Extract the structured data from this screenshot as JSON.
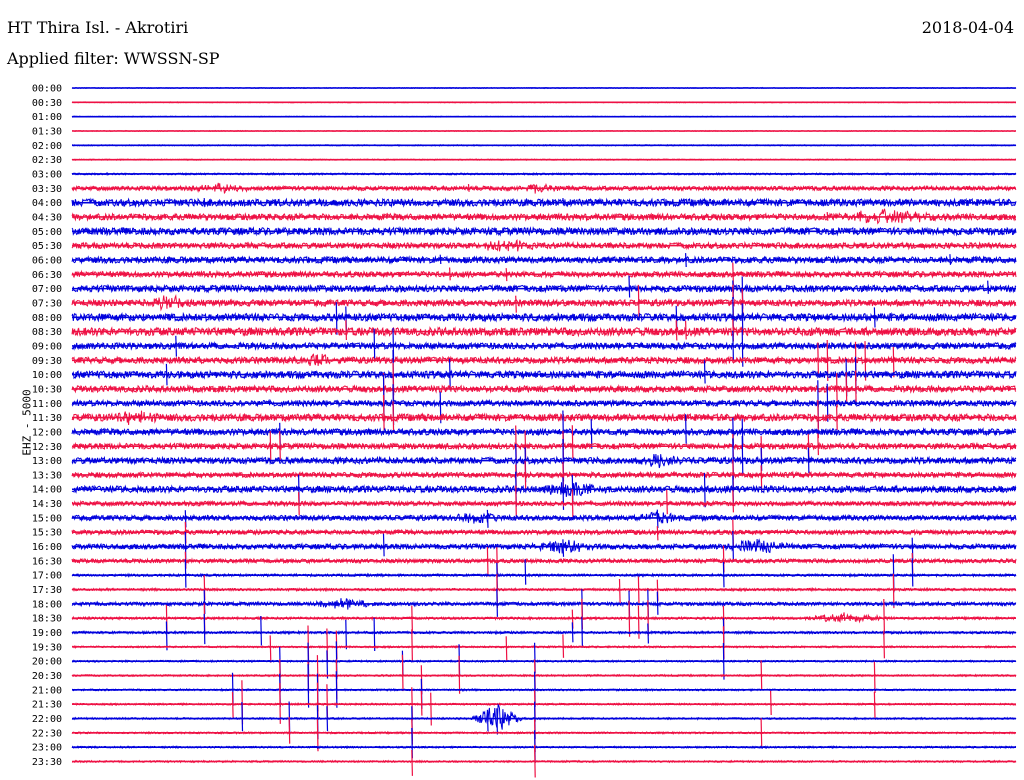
{
  "header": {
    "station": "HT Thira Isl. - Akrotiri",
    "date": "2018-04-04",
    "filter": "Applied filter: WWSSN-SP"
  },
  "chart_data": {
    "type": "line",
    "title": "HT Thira Isl. - Akrotiri",
    "ylabel": "EHZ - 5000",
    "trace_colors": [
      "#0000dd",
      "#ee1144"
    ],
    "row_labels": [
      "00:00",
      "00:30",
      "01:00",
      "01:30",
      "02:00",
      "02:30",
      "03:00",
      "03:30",
      "04:00",
      "04:30",
      "05:00",
      "05:30",
      "06:00",
      "06:30",
      "07:00",
      "07:30",
      "08:00",
      "08:30",
      "09:00",
      "09:30",
      "10:00",
      "10:30",
      "11:00",
      "11:30",
      "12:00",
      "12:30",
      "13:00",
      "13:30",
      "14:00",
      "14:30",
      "15:00",
      "15:30",
      "16:00",
      "16:30",
      "17:00",
      "17:30",
      "18:00",
      "18:30",
      "19:00",
      "19:30",
      "20:00",
      "20:30",
      "21:00",
      "21:30",
      "22:00",
      "22:30",
      "23:00",
      "23:30"
    ],
    "noise_level": [
      0.3,
      0.3,
      0.3,
      0.3,
      0.4,
      0.4,
      0.6,
      1.5,
      2.5,
      2.2,
      2.5,
      2.0,
      2.2,
      2.0,
      2.3,
      2.2,
      2.6,
      2.8,
      2.2,
      2.2,
      2.5,
      2.2,
      2.0,
      2.5,
      2.2,
      2.0,
      2.2,
      1.8,
      2.3,
      1.6,
      1.8,
      1.6,
      1.8,
      1.4,
      0.8,
      0.8,
      1.2,
      0.8,
      0.8,
      0.6,
      0.6,
      0.6,
      0.6,
      0.6,
      0.6,
      0.6,
      0.6,
      0.6
    ],
    "spikes": [
      {
        "row": 7,
        "pos": [
          0.1,
          0.42
        ],
        "amp": [
          3,
          4
        ]
      },
      {
        "row": 8,
        "pos": [
          0.14,
          0.52,
          0.86
        ],
        "amp": [
          4,
          4,
          4
        ]
      },
      {
        "row": 9,
        "pos": [
          0.8,
          0.85
        ],
        "amp": [
          6,
          6
        ]
      },
      {
        "row": 12,
        "pos": [
          0.39,
          0.65,
          0.93
        ],
        "amp": [
          6,
          6,
          8
        ]
      },
      {
        "row": 13,
        "pos": [
          0.4,
          0.46,
          0.7
        ],
        "amp": [
          8,
          10,
          10
        ]
      },
      {
        "row": 14,
        "pos": [
          0.59,
          0.7,
          0.71,
          0.97
        ],
        "amp": [
          14,
          10,
          18,
          8
        ]
      },
      {
        "row": 15,
        "pos": [
          0.1,
          0.47,
          0.6,
          0.7,
          0.71
        ],
        "amp": [
          8,
          10,
          16,
          20,
          14
        ]
      },
      {
        "row": 16,
        "pos": [
          0.28,
          0.29,
          0.64,
          0.7,
          0.71,
          0.85
        ],
        "amp": [
          16,
          14,
          10,
          18,
          20,
          14
        ]
      },
      {
        "row": 17,
        "pos": [
          0.29,
          0.64,
          0.65,
          0.7
        ],
        "amp": [
          14,
          12,
          12,
          16
        ]
      },
      {
        "row": 18,
        "pos": [
          0.11,
          0.32,
          0.34,
          0.7,
          0.71
        ],
        "amp": [
          12,
          18,
          20,
          16,
          18
        ]
      },
      {
        "row": 19,
        "pos": [
          0.79,
          0.8,
          0.83,
          0.84,
          0.87
        ],
        "amp": [
          18,
          20,
          22,
          18,
          16
        ]
      },
      {
        "row": 20,
        "pos": [
          0.1,
          0.34,
          0.4,
          0.67,
          0.82,
          0.83
        ],
        "amp": [
          14,
          22,
          14,
          12,
          20,
          18
        ]
      },
      {
        "row": 21,
        "pos": [
          0.33,
          0.34,
          0.81,
          0.82,
          0.83
        ],
        "amp": [
          20,
          22,
          22,
          20,
          18
        ]
      },
      {
        "row": 22,
        "pos": [
          0.33,
          0.34,
          0.39,
          0.79,
          0.8
        ],
        "amp": [
          24,
          22,
          18,
          22,
          20
        ]
      },
      {
        "row": 23,
        "pos": [
          0.33,
          0.34,
          0.79,
          0.81
        ],
        "amp": [
          20,
          18,
          18,
          16
        ]
      },
      {
        "row": 24,
        "pos": [
          0.22,
          0.52,
          0.55,
          0.65,
          0.7,
          0.71
        ],
        "amp": [
          14,
          18,
          18,
          16,
          14,
          14
        ]
      },
      {
        "row": 25,
        "pos": [
          0.21,
          0.22,
          0.47,
          0.48,
          0.52,
          0.53,
          0.7,
          0.73,
          0.78,
          0.79
        ],
        "amp": [
          18,
          18,
          18,
          18,
          18,
          18,
          16,
          16,
          14,
          14
        ]
      },
      {
        "row": 26,
        "pos": [
          0.47,
          0.48,
          0.52,
          0.7,
          0.71,
          0.73,
          0.78
        ],
        "amp": [
          18,
          20,
          18,
          20,
          22,
          16,
          14
        ]
      },
      {
        "row": 27,
        "pos": [
          0.47,
          0.48,
          0.52,
          0.7,
          0.73
        ],
        "amp": [
          16,
          16,
          16,
          16,
          14
        ]
      },
      {
        "row": 28,
        "pos": [
          0.24,
          0.47,
          0.52,
          0.53,
          0.67,
          0.7
        ],
        "amp": [
          14,
          16,
          20,
          14,
          16,
          16
        ]
      },
      {
        "row": 29,
        "pos": [
          0.24,
          0.47,
          0.53,
          0.63,
          0.7
        ],
        "amp": [
          14,
          16,
          14,
          14,
          14
        ]
      },
      {
        "row": 30,
        "pos": [
          0.12,
          0.44,
          0.62
        ],
        "amp": [
          12,
          10,
          10
        ]
      },
      {
        "row": 31,
        "pos": [
          0.12,
          0.62,
          0.7
        ],
        "amp": [
          12,
          10,
          12
        ]
      },
      {
        "row": 32,
        "pos": [
          0.12,
          0.33,
          0.52,
          0.7,
          0.89
        ],
        "amp": [
          16,
          12,
          10,
          14,
          12
        ]
      },
      {
        "row": 33,
        "pos": [
          0.12,
          0.44,
          0.45,
          0.69,
          0.89
        ],
        "amp": [
          12,
          14,
          16,
          14,
          12
        ]
      },
      {
        "row": 34,
        "pos": [
          0.12,
          0.45,
          0.48,
          0.69,
          0.87,
          0.89
        ],
        "amp": [
          14,
          16,
          14,
          14,
          18,
          16
        ]
      },
      {
        "row": 35,
        "pos": [
          0.14,
          0.45,
          0.58,
          0.6,
          0.62,
          0.87
        ],
        "amp": [
          12,
          16,
          14,
          14,
          16,
          18
        ]
      },
      {
        "row": 36,
        "pos": [
          0.14,
          0.45,
          0.54,
          0.59,
          0.61,
          0.62
        ],
        "amp": [
          14,
          16,
          16,
          18,
          16,
          18
        ]
      },
      {
        "row": 37,
        "pos": [
          0.1,
          0.14,
          0.36,
          0.53,
          0.54,
          0.59,
          0.6,
          0.61,
          0.69,
          0.86
        ],
        "amp": [
          14,
          16,
          14,
          14,
          18,
          16,
          18,
          16,
          18,
          16
        ]
      },
      {
        "row": 38,
        "pos": [
          0.1,
          0.14,
          0.2,
          0.29,
          0.32,
          0.53,
          0.54,
          0.61,
          0.69
        ],
        "amp": [
          16,
          18,
          14,
          16,
          16,
          14,
          20,
          14,
          22
        ]
      },
      {
        "row": 39,
        "pos": [
          0.21,
          0.25,
          0.27,
          0.28,
          0.36,
          0.46,
          0.52,
          0.69,
          0.86
        ],
        "amp": [
          16,
          18,
          16,
          18,
          16,
          16,
          18,
          18,
          18
        ]
      },
      {
        "row": 40,
        "pos": [
          0.22,
          0.25,
          0.27,
          0.28,
          0.35,
          0.41,
          0.49,
          0.69
        ],
        "amp": [
          18,
          20,
          18,
          20,
          16,
          16,
          18,
          16
        ]
      },
      {
        "row": 41,
        "pos": [
          0.22,
          0.25,
          0.26,
          0.28,
          0.35,
          0.37,
          0.41,
          0.49,
          0.73,
          0.85
        ],
        "amp": [
          18,
          20,
          18,
          22,
          18,
          16,
          18,
          18,
          16,
          16
        ]
      },
      {
        "row": 42,
        "pos": [
          0.17,
          0.22,
          0.25,
          0.26,
          0.28,
          0.37,
          0.49
        ],
        "amp": [
          16,
          20,
          22,
          20,
          22,
          18,
          18
        ]
      },
      {
        "row": 43,
        "pos": [
          0.17,
          0.18,
          0.22,
          0.26,
          0.27,
          0.36,
          0.37,
          0.38,
          0.49,
          0.74,
          0.85
        ],
        "amp": [
          18,
          20,
          22,
          24,
          20,
          20,
          18,
          18,
          18,
          16,
          14
        ]
      },
      {
        "row": 44,
        "pos": [
          0.18,
          0.23,
          0.26,
          0.27,
          0.36,
          0.44,
          0.45,
          0.49
        ],
        "amp": [
          18,
          20,
          22,
          20,
          20,
          14,
          14,
          18
        ]
      },
      {
        "row": 45,
        "pos": [
          0.23,
          0.26,
          0.36,
          0.49,
          0.73
        ],
        "amp": [
          16,
          20,
          18,
          18,
          16
        ]
      },
      {
        "row": 46,
        "pos": [
          0.36,
          0.49
        ],
        "amp": [
          18,
          16
        ]
      },
      {
        "row": 47,
        "pos": [
          0.36,
          0.49
        ],
        "amp": [
          16,
          18
        ]
      }
    ],
    "bursts": [
      {
        "row": 7,
        "pos": 0.16,
        "width": 0.04,
        "amp": 4
      },
      {
        "row": 7,
        "pos": 0.49,
        "width": 0.03,
        "amp": 4
      },
      {
        "row": 9,
        "pos": 0.86,
        "width": 0.07,
        "amp": 6
      },
      {
        "row": 11,
        "pos": 0.46,
        "width": 0.04,
        "amp": 5
      },
      {
        "row": 15,
        "pos": 0.1,
        "width": 0.03,
        "amp": 6
      },
      {
        "row": 19,
        "pos": 0.26,
        "width": 0.03,
        "amp": 5
      },
      {
        "row": 23,
        "pos": 0.07,
        "width": 0.03,
        "amp": 6
      },
      {
        "row": 26,
        "pos": 0.62,
        "width": 0.03,
        "amp": 6
      },
      {
        "row": 28,
        "pos": 0.53,
        "width": 0.04,
        "amp": 6
      },
      {
        "row": 30,
        "pos": 0.43,
        "width": 0.03,
        "amp": 6
      },
      {
        "row": 30,
        "pos": 0.62,
        "width": 0.03,
        "amp": 6
      },
      {
        "row": 32,
        "pos": 0.52,
        "width": 0.04,
        "amp": 6
      },
      {
        "row": 32,
        "pos": 0.73,
        "width": 0.04,
        "amp": 6
      },
      {
        "row": 36,
        "pos": 0.29,
        "width": 0.04,
        "amp": 5
      },
      {
        "row": 37,
        "pos": 0.82,
        "width": 0.05,
        "amp": 5
      },
      {
        "row": 44,
        "pos": 0.45,
        "width": 0.03,
        "amp": 14
      }
    ]
  }
}
